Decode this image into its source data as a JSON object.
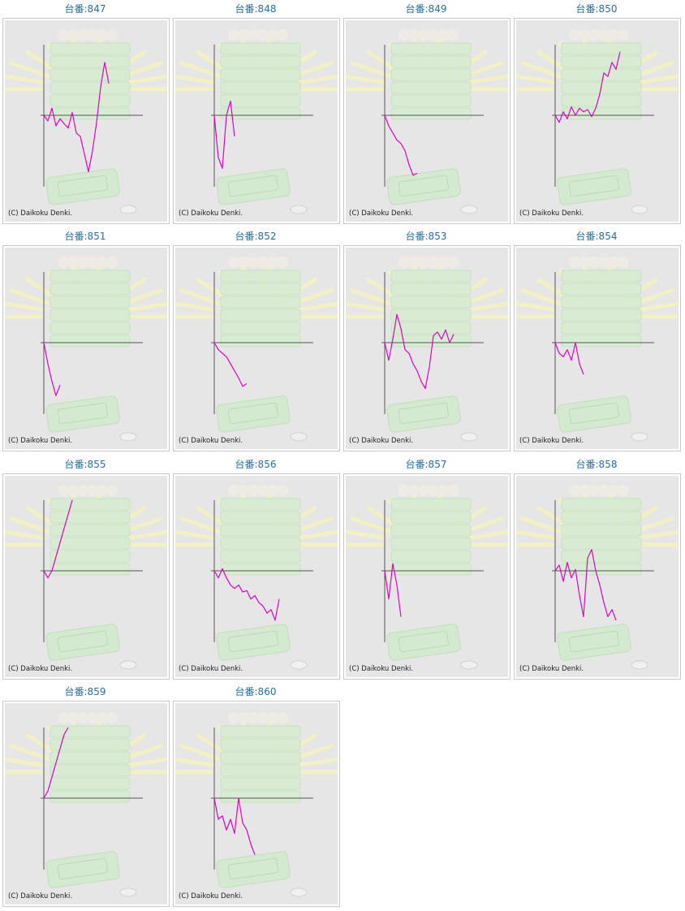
{
  "label_prefix": "台番:",
  "copyright": "(C) Daikoku Denki.",
  "colors": {
    "line": "#e100c8",
    "axis": "#555555",
    "title": "#2a6fa0",
    "bg": "#e6e6e6"
  },
  "chart_data": [
    {
      "type": "line",
      "title": "台番:847",
      "ylim": [
        -1,
        1
      ],
      "y": [
        0,
        -0.08,
        0.1,
        -0.15,
        -0.05,
        -0.12,
        -0.18,
        0.04,
        -0.25,
        -0.3,
        -0.55,
        -0.8,
        -0.5,
        -0.1,
        0.4,
        0.75,
        0.45
      ]
    },
    {
      "type": "line",
      "title": "台番:848",
      "ylim": [
        -1,
        1
      ],
      "y": [
        0,
        -0.6,
        -0.75,
        0.0,
        0.2,
        -0.3
      ]
    },
    {
      "type": "line",
      "title": "台番:849",
      "ylim": [
        -1,
        1
      ],
      "y": [
        0,
        -0.15,
        -0.25,
        -0.35,
        -0.4,
        -0.5,
        -0.7,
        -0.85,
        -0.82
      ]
    },
    {
      "type": "line",
      "title": "台番:850",
      "ylim": [
        -1,
        1
      ],
      "y": [
        0,
        -0.1,
        0.05,
        -0.05,
        0.12,
        0.0,
        0.1,
        0.05,
        0.08,
        -0.02,
        0.1,
        0.3,
        0.6,
        0.55,
        0.75,
        0.65,
        0.9
      ]
    },
    {
      "type": "line",
      "title": "台番:851",
      "ylim": [
        -1,
        1
      ],
      "y": [
        0,
        -0.3,
        -0.55,
        -0.75,
        -0.6
      ]
    },
    {
      "type": "line",
      "title": "台番:852",
      "ylim": [
        -1,
        1
      ],
      "y": [
        0,
        -0.1,
        -0.15,
        -0.2,
        -0.3,
        -0.4,
        -0.5,
        -0.62,
        -0.58
      ]
    },
    {
      "type": "line",
      "title": "台番:853",
      "ylim": [
        -1,
        1
      ],
      "y": [
        0,
        -0.25,
        0.05,
        0.4,
        0.2,
        -0.1,
        -0.15,
        -0.3,
        -0.4,
        -0.55,
        -0.65,
        -0.35,
        0.1,
        0.15,
        0.05,
        0.18,
        0.0,
        0.12
      ]
    },
    {
      "type": "line",
      "title": "台番:854",
      "ylim": [
        -1,
        1
      ],
      "y": [
        0,
        -0.15,
        -0.2,
        -0.1,
        -0.25,
        0.0,
        -0.3,
        -0.45
      ]
    },
    {
      "type": "line",
      "title": "台番:855",
      "ylim": [
        -1,
        1
      ],
      "y": [
        0,
        -0.1,
        0.0,
        0.2,
        0.4,
        0.6,
        0.8,
        1.0
      ]
    },
    {
      "type": "line",
      "title": "台番:856",
      "ylim": [
        -1,
        1
      ],
      "y": [
        0,
        -0.1,
        0.03,
        -0.1,
        -0.2,
        -0.25,
        -0.2,
        -0.3,
        -0.28,
        -0.4,
        -0.35,
        -0.45,
        -0.5,
        -0.6,
        -0.55,
        -0.7,
        -0.4
      ]
    },
    {
      "type": "line",
      "title": "台番:857",
      "ylim": [
        -1,
        1
      ],
      "y": [
        0,
        -0.4,
        0.1,
        -0.2,
        -0.65
      ]
    },
    {
      "type": "line",
      "title": "台番:858",
      "ylim": [
        -1,
        1
      ],
      "y": [
        0,
        0.08,
        -0.15,
        0.12,
        -0.1,
        0.02,
        -0.35,
        -0.65,
        0.18,
        0.3,
        0.0,
        -0.2,
        -0.45,
        -0.65,
        -0.55,
        -0.7
      ]
    },
    {
      "type": "line",
      "title": "台番:859",
      "ylim": [
        -1,
        1
      ],
      "y": [
        0,
        0.1,
        0.3,
        0.5,
        0.7,
        0.9,
        1.0
      ]
    },
    {
      "type": "line",
      "title": "台番:860",
      "ylim": [
        -1,
        1
      ],
      "y": [
        0,
        -0.3,
        -0.25,
        -0.45,
        -0.3,
        -0.5,
        0.0,
        -0.35,
        -0.45,
        -0.65,
        -0.8
      ]
    }
  ]
}
